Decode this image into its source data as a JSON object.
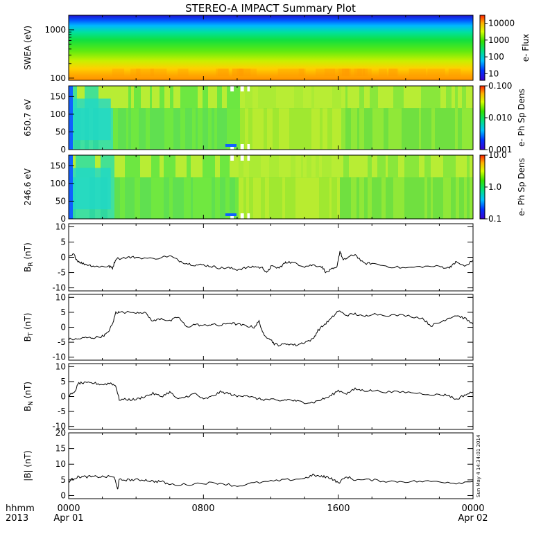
{
  "title": "STEREO-A IMPACT Summary Plot",
  "stamp": "Sun May  4 14:34:01 2014",
  "colors": {
    "axis": "#000000",
    "line": "#000000",
    "background": "#ffffff"
  },
  "time_axis": {
    "row1": [
      "hhmm",
      "0000",
      "0800",
      "1600",
      "0000"
    ],
    "row2": [
      "2013",
      "Apr 01",
      "Apr 02"
    ],
    "tick_hours": [
      0,
      8,
      16,
      24
    ],
    "minor_hours": [
      2,
      4,
      6,
      10,
      12,
      14,
      18,
      20,
      22
    ]
  },
  "chart_data": [
    {
      "type": "heatmap",
      "ylabel": "SWEA (eV)",
      "scale": "log",
      "ylim": [
        90,
        2000
      ],
      "yticks": [
        {
          "value": 1000,
          "label": "1000"
        },
        {
          "value": 100,
          "label": "100"
        }
      ],
      "colorbar": {
        "label": "e- Flux",
        "scale": "log",
        "range": [
          4,
          30000
        ],
        "ticks": [
          {
            "value": 10000,
            "label": "10000"
          },
          {
            "value": 1000,
            "label": "1000"
          },
          {
            "value": 100,
            "label": "100"
          },
          {
            "value": 10,
            "label": "10"
          }
        ]
      },
      "description_values": {
        "low_energy_flux": 5000,
        "high_energy_flux": 5
      }
    },
    {
      "type": "heatmap",
      "ylabel": "650.7 eV",
      "ylim": [
        0,
        180
      ],
      "yticks": [
        {
          "value": 150,
          "label": "150"
        },
        {
          "value": 100,
          "label": "100"
        },
        {
          "value": 50,
          "label": "50"
        },
        {
          "value": 0,
          "label": "0"
        }
      ],
      "colorbar": {
        "label": "e- Ph Sp Dens",
        "scale": "log",
        "range": [
          0.001,
          0.1
        ],
        "ticks": [
          {
            "value": 0.1,
            "label": "0.100"
          },
          {
            "value": 0.01,
            "label": "0.010"
          },
          {
            "value": 0.001,
            "label": "0.001"
          }
        ]
      }
    },
    {
      "type": "heatmap",
      "ylabel": "246.6 eV",
      "ylim": [
        0,
        180
      ],
      "yticks": [
        {
          "value": 150,
          "label": "150"
        },
        {
          "value": 100,
          "label": "100"
        },
        {
          "value": 50,
          "label": "50"
        },
        {
          "value": 0,
          "label": "0"
        }
      ],
      "colorbar": {
        "label": "e- Ph Sp Dens",
        "scale": "log",
        "range": [
          0.1,
          10
        ],
        "ticks": [
          {
            "value": 10,
            "label": "10.0"
          },
          {
            "value": 1,
            "label": "1.0"
          },
          {
            "value": 0.1,
            "label": "0.1"
          }
        ]
      }
    },
    {
      "type": "line",
      "ylabel": "B_R (nT)",
      "ylim": [
        -11,
        11
      ],
      "yticks": [
        10,
        5,
        0,
        -5,
        -10
      ],
      "x": [
        0,
        0.3,
        0.5,
        0.8,
        1.2,
        1.6,
        2.0,
        2.4,
        2.6,
        2.8,
        3.5,
        4,
        5,
        6,
        6.5,
        7,
        7.5,
        8,
        8.5,
        9,
        9.5,
        10,
        10.5,
        11,
        11.5,
        11.8,
        12,
        12.5,
        12.8,
        13,
        13.5,
        14,
        14.5,
        15,
        15.3,
        15.6,
        15.9,
        16.1,
        16.3,
        16.6,
        17,
        17.5,
        18,
        19,
        20,
        21,
        22,
        22.5,
        22.8,
        23,
        23.5,
        24
      ],
      "y": [
        0,
        1,
        -1,
        -2,
        -2.5,
        -3,
        -3,
        -3,
        -3.5,
        -0.5,
        0,
        0,
        -0.5,
        0.5,
        -1,
        -2,
        -2.5,
        -2.5,
        -3,
        -3.5,
        -3.5,
        -4,
        -3.5,
        -3,
        -3.5,
        -5,
        -3,
        -3.5,
        -2,
        -1.5,
        -2,
        -3,
        -2.5,
        -3,
        -5,
        -4,
        -3.5,
        2,
        -1,
        0,
        1,
        -2,
        -2,
        -3,
        -3.5,
        -3,
        -3,
        -3.5,
        -2.5,
        -1.5,
        -3,
        -1
      ]
    },
    {
      "type": "line",
      "ylabel": "B_T (nT)",
      "ylim": [
        -11,
        11
      ],
      "yticks": [
        10,
        5,
        0,
        -5,
        -10
      ],
      "x": [
        0,
        0.5,
        1,
        1.5,
        2,
        2.3,
        2.6,
        2.8,
        3,
        4,
        4.5,
        5,
        5.5,
        6,
        6.5,
        7,
        7.5,
        8,
        8.5,
        9,
        9.5,
        10,
        10.5,
        11,
        11.3,
        11.6,
        11.9,
        12.2,
        12.5,
        13,
        13.5,
        14,
        14.5,
        14.8,
        15.2,
        15.6,
        16,
        16.5,
        17,
        17.5,
        18,
        19,
        20,
        21,
        21.5,
        22,
        22.5,
        23,
        23.5,
        24
      ],
      "y": [
        -4,
        -4,
        -3.5,
        -3.5,
        -3,
        -2,
        1,
        5,
        5,
        5,
        5,
        2,
        3,
        2,
        3.5,
        0,
        1,
        0.5,
        1,
        0.5,
        1.5,
        1,
        0.5,
        0,
        2,
        -3,
        -3.5,
        -5.5,
        -6,
        -5.5,
        -6,
        -5,
        -4,
        -1,
        1,
        3,
        5.5,
        4,
        4.5,
        3.5,
        4.5,
        4,
        4,
        3,
        0.5,
        1.5,
        3,
        4,
        3,
        1
      ]
    },
    {
      "type": "line",
      "ylabel": "B_N (nT)",
      "ylim": [
        -11,
        11
      ],
      "yticks": [
        10,
        5,
        0,
        -5,
        -10
      ],
      "x": [
        0,
        0.3,
        0.6,
        1,
        1.5,
        2,
        2.5,
        2.8,
        3,
        3.5,
        4,
        4.5,
        5,
        5.5,
        6,
        6.5,
        7,
        7.5,
        8,
        8.5,
        9,
        9.5,
        10,
        10.5,
        11,
        11.5,
        12,
        12.5,
        13,
        13.5,
        14,
        14.5,
        15,
        15.5,
        16,
        16.5,
        17,
        17.5,
        18,
        19,
        20,
        21,
        22,
        22.5,
        23,
        23.5,
        24
      ],
      "y": [
        0.5,
        1,
        4.5,
        4.5,
        4.5,
        4,
        4.5,
        3.5,
        -1,
        -1,
        -1,
        0,
        1,
        0,
        1.5,
        -1,
        0,
        1,
        -1,
        0,
        1.5,
        1,
        0,
        0.5,
        -0.5,
        -1,
        -1,
        -1.5,
        -1,
        -1.5,
        -2,
        -2,
        -1,
        0,
        2,
        1,
        2.5,
        2,
        2,
        1.5,
        1.5,
        1,
        0.5,
        0.5,
        -1,
        0.5,
        1.5
      ]
    },
    {
      "type": "line",
      "ylabel": "|B| (nT)",
      "ylim": [
        -1,
        20
      ],
      "yticks": [
        20,
        15,
        10,
        5,
        0
      ],
      "x": [
        0,
        0.3,
        0.6,
        1,
        1.5,
        2,
        2.7,
        2.9,
        3,
        3.5,
        4,
        4.5,
        5,
        5.5,
        6,
        7,
        8,
        9,
        10,
        11,
        12,
        13,
        14,
        14.5,
        15,
        15.3,
        15.6,
        16,
        16.5,
        17,
        18,
        19,
        20,
        21,
        22,
        23,
        24
      ],
      "y": [
        4.5,
        5.5,
        6,
        6,
        6,
        6,
        6,
        2,
        5,
        5,
        5,
        5,
        4.5,
        4.5,
        3.5,
        3.5,
        4,
        4,
        3,
        4,
        4.5,
        5,
        5.5,
        6.5,
        6,
        6,
        5.5,
        4,
        6,
        5,
        5,
        4.5,
        4.5,
        4.5,
        4.5,
        4,
        4.5
      ]
    }
  ]
}
